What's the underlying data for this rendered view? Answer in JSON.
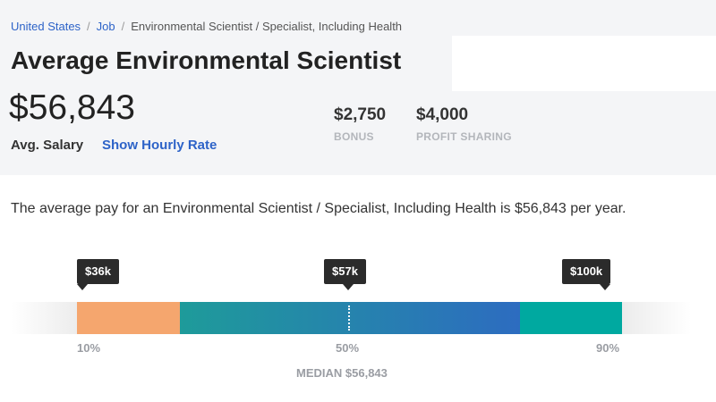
{
  "breadcrumb": {
    "items": [
      "United States",
      "Job",
      "Environmental Scientist / Specialist, Including Health"
    ],
    "separator": "/"
  },
  "title": "Average Environmental Scientist",
  "salary": {
    "value": "$56,843",
    "label": "Avg. Salary",
    "hourly_link": "Show Hourly Rate"
  },
  "extras": [
    {
      "amount": "$2,750",
      "caption": "BONUS"
    },
    {
      "amount": "$4,000",
      "caption": "PROFIT SHARING"
    }
  ],
  "description": "The average pay for an Environmental Scientist / Specialist, Including Health is $56,843 per year.",
  "distribution": {
    "markers": [
      {
        "label": "$36k",
        "percentile": "10%"
      },
      {
        "label": "$57k",
        "percentile": "50%"
      },
      {
        "label": "$100k",
        "percentile": "90%"
      }
    ],
    "median_label": "MEDIAN $56,843",
    "colors": {
      "low_segment": "#f5a66e",
      "mid_segment_start": "#1e9b9a",
      "mid_segment_end": "#2d6cc0",
      "high_segment": "#00a9a0",
      "tooltip": "#2b2b2b"
    }
  },
  "colors": {
    "link": "#2d63c8",
    "header_background": "#f4f5f7"
  }
}
